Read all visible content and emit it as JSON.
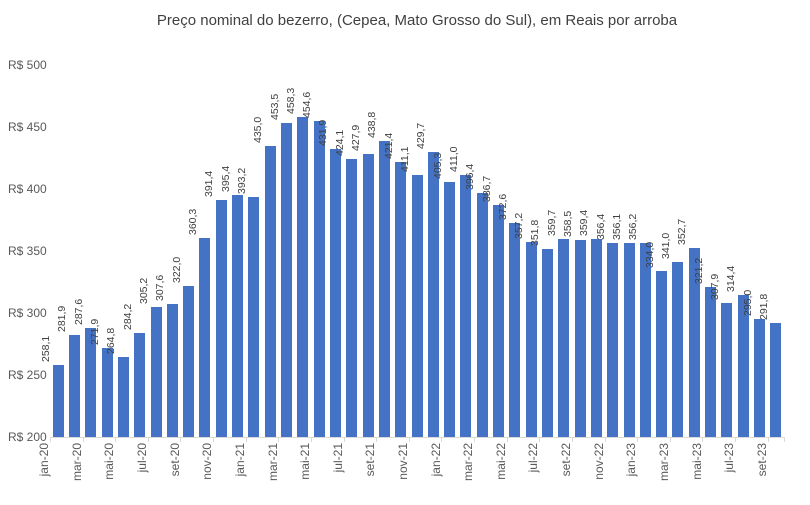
{
  "chart_data": {
    "type": "bar",
    "title": "Preço nominal do bezerro, (Cepea, Mato Grosso do Sul), em Reais por arroba",
    "values": [
      258.1,
      281.9,
      287.6,
      271.9,
      264.8,
      284.2,
      305.2,
      307.6,
      322.0,
      360.3,
      391.4,
      395.4,
      393.2,
      435.0,
      453.5,
      458.3,
      454.6,
      431.9,
      424.1,
      427.9,
      438.8,
      421.4,
      411.1,
      429.7,
      405.3,
      411.0,
      396.4,
      386.7,
      372.6,
      357.2,
      351.8,
      359.7,
      358.5,
      359.4,
      356.4,
      356.1,
      356.2,
      334.0,
      341.0,
      352.7,
      321.2,
      307.9,
      314.4,
      295.0,
      291.8
    ],
    "value_labels": [
      "258,1",
      "281,9",
      "287,6",
      "271,9",
      "264,8",
      "284,2",
      "305,2",
      "307,6",
      "322,0",
      "360,3",
      "391,4",
      "395,4",
      "393,2",
      "435,0",
      "453,5",
      "458,3",
      "454,6",
      "431,9",
      "424,1",
      "427,9",
      "438,8",
      "421,4",
      "411,1",
      "429,7",
      "405,3",
      "411,0",
      "396,4",
      "386,7",
      "372,6",
      "357,2",
      "351,8",
      "359,7",
      "358,5",
      "359,4",
      "356,4",
      "356,1",
      "356,2",
      "334,0",
      "341,0",
      "352,7",
      "321,2",
      "307,9",
      "314,4",
      "295,0",
      "291,8"
    ],
    "x_tick_labels": [
      "jan-20",
      "mar-20",
      "mai-20",
      "jul-20",
      "set-20",
      "nov-20",
      "jan-21",
      "mar-21",
      "mai-21",
      "jul-21",
      "set-21",
      "nov-21",
      "jan-22",
      "mar-22",
      "mai-22",
      "jul-22",
      "set-22",
      "nov-22",
      "jan-23",
      "mar-23",
      "mai-23",
      "jul-23",
      "set-23"
    ],
    "x_tick_interval": 2,
    "y_tick_labels": [
      "R$ 200",
      "R$ 250",
      "R$ 300",
      "R$ 350",
      "R$ 400",
      "R$ 450",
      "R$ 500"
    ],
    "y_tick_values": [
      200,
      250,
      300,
      350,
      400,
      450,
      500
    ],
    "ylim": [
      200,
      500
    ],
    "grid": false,
    "legend": false,
    "bar_color": "#4472C4",
    "data_label_color": "#404040",
    "axis_label_color": "#595959",
    "axis_line_color": "#D9D9D9",
    "background": "#FFFFFF"
  }
}
